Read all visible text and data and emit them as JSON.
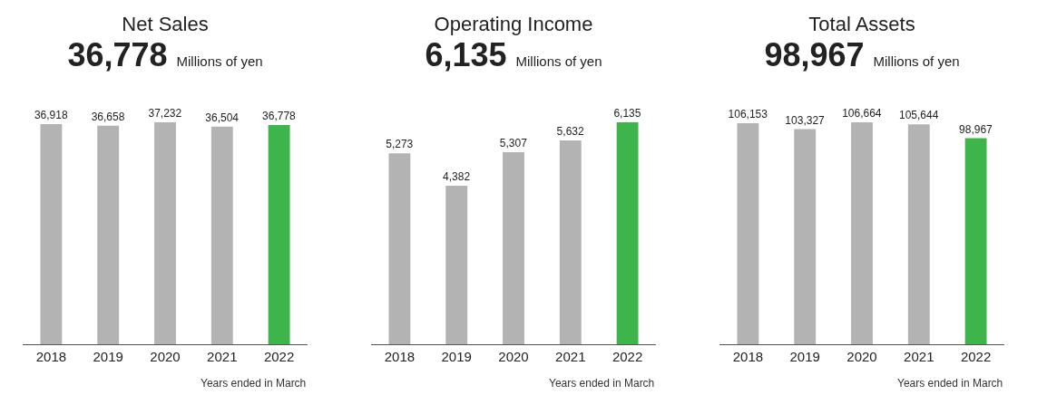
{
  "chart_data": [
    {
      "type": "bar",
      "title": "Net Sales",
      "subtitle": "36,778 Millions of yen",
      "categories": [
        "2018",
        "2019",
        "2020",
        "2021",
        "2022"
      ],
      "values": [
        36918,
        36658,
        37232,
        36504,
        36778
      ],
      "colors": [
        "#b3b3b4",
        "#b3b3b4",
        "#b3b3b4",
        "#b3b3b4",
        "#3db54a"
      ],
      "value_labels": [
        "36,918",
        "36,658",
        "37,232",
        "36,504",
        "36,778"
      ],
      "annotations": [
        "Years ended in March"
      ]
    },
    {
      "type": "bar",
      "title": "Operating Income",
      "subtitle": "6,135 Millions of yen",
      "categories": [
        "2018",
        "2019",
        "2020",
        "2021",
        "2022"
      ],
      "values": [
        5273,
        4382,
        5307,
        5632,
        6135
      ],
      "colors": [
        "#b3b3b4",
        "#b3b3b4",
        "#b3b3b4",
        "#b3b3b4",
        "#3db54a"
      ],
      "value_labels": [
        "5,273",
        "4,382",
        "5,307",
        "5,632",
        "6,135"
      ],
      "annotations": [
        "Years ended in March"
      ]
    },
    {
      "type": "bar",
      "title": "Total Assets",
      "subtitle": "98,967 Millions of yen",
      "categories": [
        "2018",
        "2019",
        "2020",
        "2021",
        "2022"
      ],
      "values": [
        106153,
        103327,
        106664,
        105644,
        98967
      ],
      "colors": [
        "#b3b3b4",
        "#b3b3b4",
        "#b3b3b4",
        "#b3b3b4",
        "#3db54a"
      ],
      "value_labels": [
        "106,153",
        "103,327",
        "106,664",
        "105,644",
        "98,967"
      ],
      "annotations": [
        "Years ended in March"
      ]
    }
  ]
}
